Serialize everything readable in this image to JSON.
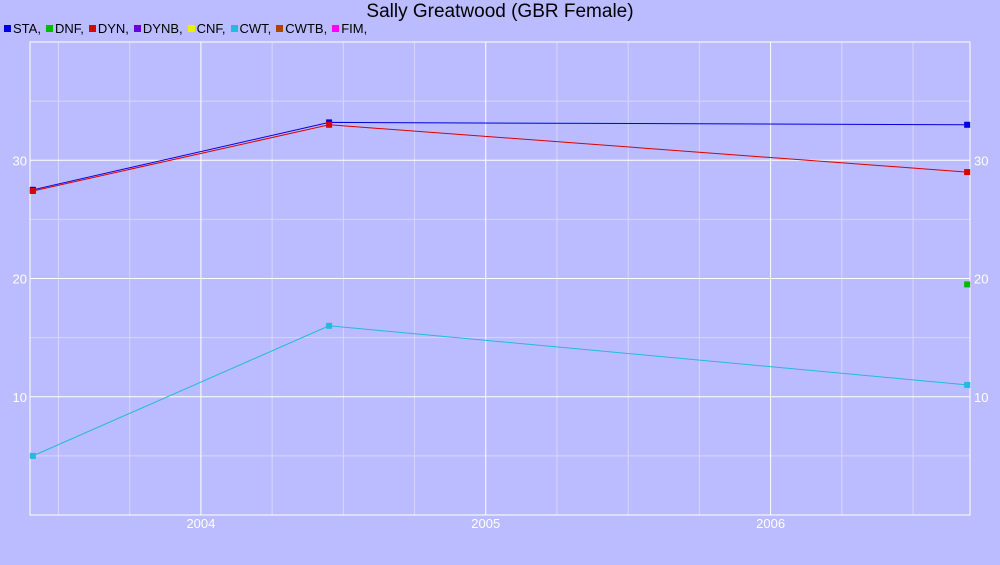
{
  "chart_data": {
    "type": "line",
    "title": "Sally Greatwood (GBR Female)",
    "legend": [
      {
        "label": "STA,",
        "color": "#0000DD"
      },
      {
        "label": "DNF,",
        "color": "#00BB00"
      },
      {
        "label": "DYN,",
        "color": "#DD0000"
      },
      {
        "label": "DYNB,",
        "color": "#6600DD"
      },
      {
        "label": "CNF,",
        "color": "#EEEE00"
      },
      {
        "label": "CWT,",
        "color": "#22BBDD"
      },
      {
        "label": "CWTB,",
        "color": "#AA4400"
      },
      {
        "label": "FIM,",
        "color": "#FF00FF"
      }
    ],
    "legend_position": "top-left",
    "grid": true,
    "xlim": [
      2003.4,
      2006.7
    ],
    "ylim": [
      0,
      40
    ],
    "x_ticks": [
      2004,
      2005,
      2006
    ],
    "y_ticks": [
      10,
      20,
      30
    ],
    "series": [
      {
        "name": "STA",
        "color": "#0000DD",
        "points": [
          [
            2003.41,
            27.5
          ],
          [
            2004.45,
            33.2
          ],
          [
            2006.69,
            33.0
          ]
        ]
      },
      {
        "name": "DYN",
        "color": "#DD0000",
        "points": [
          [
            2003.41,
            27.4
          ],
          [
            2004.45,
            33.0
          ],
          [
            2006.69,
            29.0
          ]
        ]
      },
      {
        "name": "CWT",
        "color": "#22BBDD",
        "points": [
          [
            2003.41,
            5.0
          ],
          [
            2004.45,
            16.0
          ],
          [
            2006.69,
            11.0
          ]
        ]
      },
      {
        "name": "DNF",
        "color": "#00BB00",
        "points": [
          [
            2006.69,
            19.5
          ]
        ]
      }
    ]
  }
}
